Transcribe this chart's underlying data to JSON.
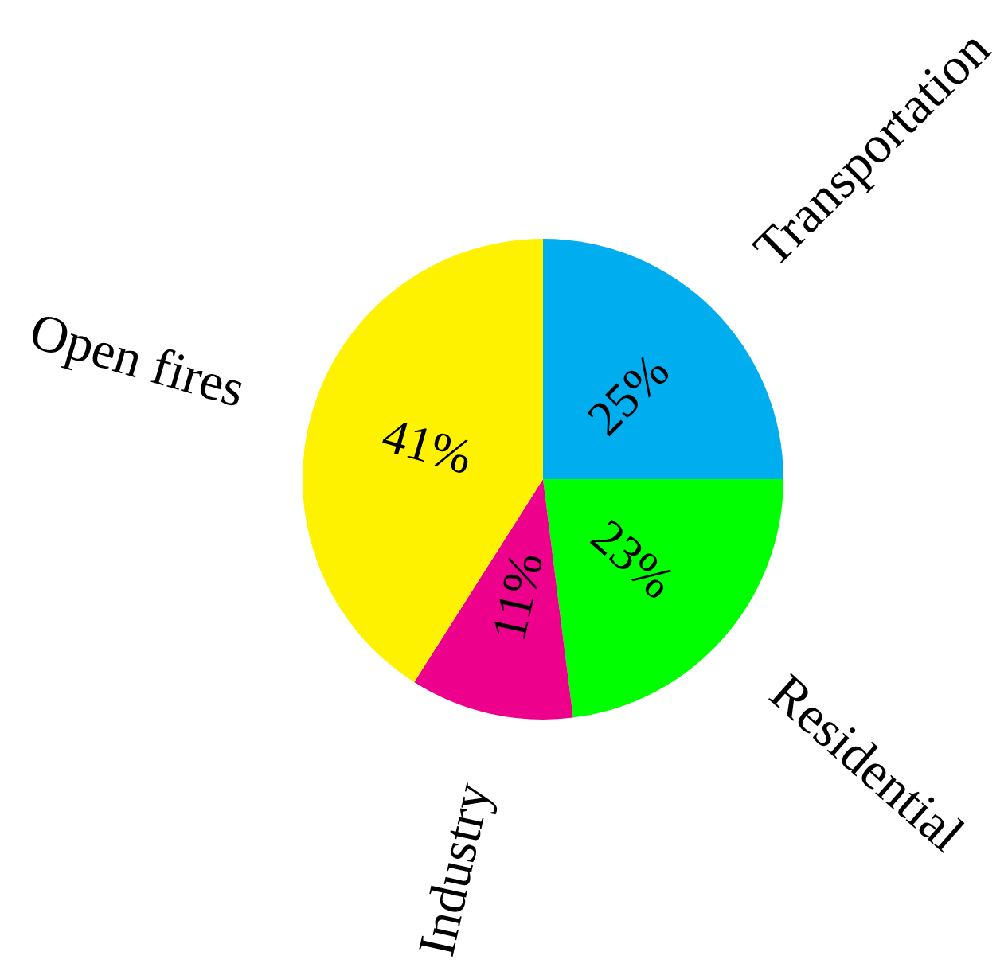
{
  "chart_data": {
    "type": "pie",
    "categories": [
      "Transportation",
      "Residential",
      "Industry",
      "Open fires"
    ],
    "values": [
      25,
      23,
      11,
      41
    ],
    "colors": [
      "#00aeef",
      "#00ff00",
      "#ec008c",
      "#fff200"
    ],
    "value_labels": [
      "25%",
      "23%",
      "11%",
      "41%"
    ]
  }
}
